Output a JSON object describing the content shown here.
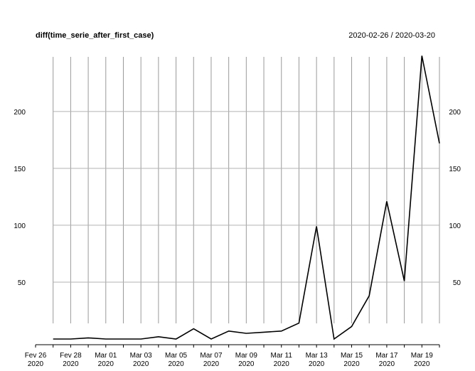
{
  "chart_data": {
    "type": "line",
    "title": "diff(time_serie_after_first_case)",
    "date_range": "2020-02-26 / 2020-03-20",
    "ylim": [
      -5,
      248
    ],
    "y_ticks": [
      50,
      100,
      150,
      200
    ],
    "grid": true,
    "x_tick_labels": [
      {
        "date": "2020-02-26",
        "line1": "Fev 26",
        "line2": "2020"
      },
      {
        "date": "2020-02-28",
        "line1": "Fev 28",
        "line2": "2020"
      },
      {
        "date": "2020-03-01",
        "line1": "Mar 01",
        "line2": "2020"
      },
      {
        "date": "2020-03-03",
        "line1": "Mar 03",
        "line2": "2020"
      },
      {
        "date": "2020-03-05",
        "line1": "Mar 05",
        "line2": "2020"
      },
      {
        "date": "2020-03-07",
        "line1": "Mar 07",
        "line2": "2020"
      },
      {
        "date": "2020-03-09",
        "line1": "Mar 09",
        "line2": "2020"
      },
      {
        "date": "2020-03-11",
        "line1": "Mar 11",
        "line2": "2020"
      },
      {
        "date": "2020-03-13",
        "line1": "Mar 13",
        "line2": "2020"
      },
      {
        "date": "2020-03-15",
        "line1": "Mar 15",
        "line2": "2020"
      },
      {
        "date": "2020-03-17",
        "line1": "Mar 17",
        "line2": "2020"
      },
      {
        "date": "2020-03-19",
        "line1": "Mar 19",
        "line2": "2020"
      }
    ],
    "series": [
      {
        "x": [
          "2020-02-27",
          "2020-02-28",
          "2020-02-29",
          "2020-03-01",
          "2020-03-02",
          "2020-03-03",
          "2020-03-04",
          "2020-03-05",
          "2020-03-06",
          "2020-03-07",
          "2020-03-08",
          "2020-03-09",
          "2020-03-10",
          "2020-03-11",
          "2020-03-12",
          "2020-03-13",
          "2020-03-14",
          "2020-03-15",
          "2020-03-16",
          "2020-03-17",
          "2020-03-18",
          "2020-03-19",
          "2020-03-20"
        ],
        "values": [
          0,
          0,
          1,
          0,
          0,
          0,
          2,
          0,
          9,
          0,
          7,
          5,
          6,
          7,
          14,
          99,
          0,
          11,
          38,
          121,
          51,
          249,
          172
        ],
        "color": "#000000"
      }
    ]
  }
}
